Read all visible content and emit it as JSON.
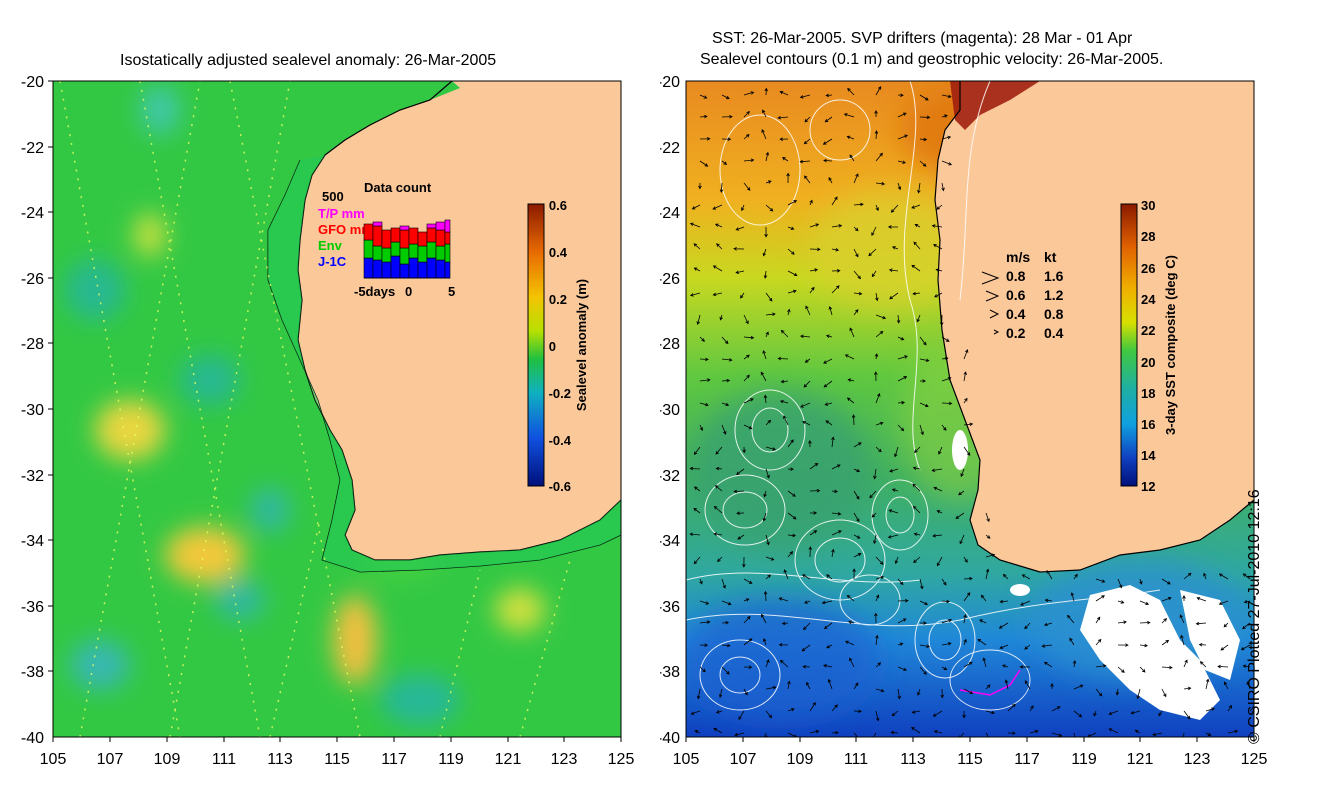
{
  "left_panel": {
    "title": "Isostatically adjusted sealevel anomaly: 26-Mar-2005",
    "x_ticks": [
      "105",
      "107",
      "109",
      "111",
      "113",
      "115",
      "117",
      "119",
      "121",
      "123",
      "125"
    ],
    "y_ticks": [
      "-20",
      "-22",
      "-24",
      "-26",
      "-28",
      "-30",
      "-32",
      "-34",
      "-36",
      "-38",
      "-40"
    ],
    "colorbar": {
      "label": "Sealevel anomaly (m)",
      "ticks": [
        "0.6",
        "0.4",
        "0.2",
        "0",
        "-0.2",
        "-0.4",
        "-0.6"
      ]
    },
    "inset": {
      "title": "Data count",
      "ymax": "500",
      "legend": [
        {
          "label": "T/P mm",
          "color": "#ff00ff"
        },
        {
          "label": "GFO mm",
          "color": "#ff0000"
        },
        {
          "label": "Env",
          "color": "#00cc00"
        },
        {
          "label": "J-1C",
          "color": "#0000ff"
        }
      ],
      "x_labels": [
        "-5days",
        "0",
        "5"
      ]
    }
  },
  "right_panel": {
    "title_line1": "SST: 26-Mar-2005. SVP drifters (magenta): 28 Mar - 01 Apr",
    "title_line2": "Sealevel contours (0.1 m) and geostrophic velocity: 26-Mar-2005.",
    "x_ticks": [
      "105",
      "107",
      "109",
      "111",
      "113",
      "115",
      "117",
      "119",
      "121",
      "123",
      "125"
    ],
    "y_ticks": [
      "-20",
      "-22",
      "-24",
      "-26",
      "-28",
      "-30",
      "-32",
      "-34",
      "-36",
      "-38",
      "-40"
    ],
    "colorbar": {
      "label": "3-day SST composite (deg C)",
      "ticks": [
        "30",
        "28",
        "26",
        "24",
        "22",
        "20",
        "18",
        "16",
        "14",
        "12"
      ]
    },
    "speed_legend": {
      "header_ms": "m/s",
      "header_kt": "kt",
      "rows": [
        {
          "ms": "0.8",
          "kt": "1.6"
        },
        {
          "ms": "0.6",
          "kt": "1.2"
        },
        {
          "ms": "0.4",
          "kt": "0.8"
        },
        {
          "ms": "0.2",
          "kt": "0.4"
        }
      ]
    }
  },
  "copyright": "© CSIRO Plotted 27-Jul-2010 12:16",
  "colors": {
    "land": "#fbc89a",
    "sla_base": "#2fcf2f",
    "sst_warm": "#e07a00"
  }
}
